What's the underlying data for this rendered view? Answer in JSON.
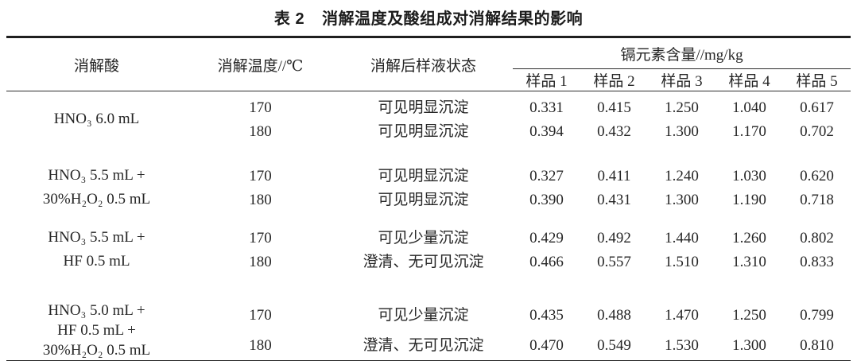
{
  "page": {
    "background": "#ffffff",
    "text_color": "#262626",
    "rule_color": "#1f1f1f"
  },
  "title": {
    "label": "表 2",
    "text": "消解温度及酸组成对消解结果的影响"
  },
  "table": {
    "headers": {
      "acid": "消解酸",
      "temperature": "消解温度//℃",
      "state": "消解后样液状态",
      "cadmium_group": "镉元素含量//mg/kg",
      "samples": [
        "样品 1",
        "样品 2",
        "样品 3",
        "样品 4",
        "样品 5"
      ]
    },
    "groups": [
      {
        "acid_lines": [
          "HNO₃ 6.0 mL"
        ],
        "rows": [
          {
            "temperature": "170",
            "state": "可见明显沉淀",
            "values": [
              "0.331",
              "0.415",
              "1.250",
              "1.040",
              "0.617"
            ]
          },
          {
            "temperature": "180",
            "state": "可见明显沉淀",
            "values": [
              "0.394",
              "0.432",
              "1.300",
              "1.170",
              "0.702"
            ]
          }
        ]
      },
      {
        "acid_lines": [
          "HNO₃ 5.5 mL +",
          "30%H₂O₂ 0.5 mL"
        ],
        "rows": [
          {
            "temperature": "170",
            "state": "可见明显沉淀",
            "values": [
              "0.327",
              "0.411",
              "1.240",
              "1.030",
              "0.620"
            ]
          },
          {
            "temperature": "180",
            "state": "可见明显沉淀",
            "values": [
              "0.390",
              "0.431",
              "1.300",
              "1.190",
              "0.718"
            ]
          }
        ]
      },
      {
        "acid_lines": [
          "HNO₃ 5.5 mL +",
          "HF 0.5 mL"
        ],
        "rows": [
          {
            "temperature": "170",
            "state": "可见少量沉淀",
            "values": [
              "0.429",
              "0.492",
              "1.440",
              "1.260",
              "0.802"
            ]
          },
          {
            "temperature": "180",
            "state": "澄清、无可见沉淀",
            "values": [
              "0.466",
              "0.557",
              "1.510",
              "1.310",
              "0.833"
            ]
          }
        ]
      },
      {
        "acid_lines": [
          "HNO₃ 5.0 mL +",
          "HF 0.5 mL +",
          "30%H₂O₂ 0.5 mL"
        ],
        "rows": [
          {
            "temperature": "170",
            "state": "可见少量沉淀",
            "values": [
              "0.435",
              "0.488",
              "1.470",
              "1.250",
              "0.799"
            ]
          },
          {
            "temperature": "180",
            "state": "澄清、无可见沉淀",
            "values": [
              "0.470",
              "0.549",
              "1.530",
              "1.300",
              "0.810"
            ]
          }
        ]
      }
    ]
  }
}
